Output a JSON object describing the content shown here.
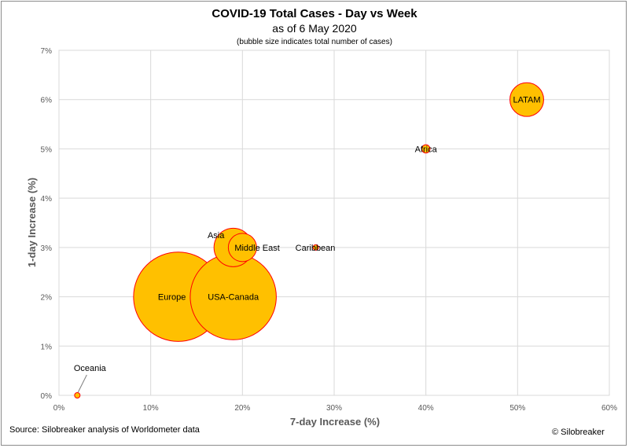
{
  "chart_data": {
    "type": "scatter",
    "title": "COVID-19 Total Cases - Day vs Week",
    "subtitle": "as of 6 May 2020",
    "note": "(bubble size indicates total number of cases)",
    "xlabel": "7-day Increase (%)",
    "ylabel": "1-day Increase (%)",
    "xlim": [
      0,
      60
    ],
    "ylim": [
      0,
      7
    ],
    "x_ticks": [
      "0%",
      "10%",
      "20%",
      "30%",
      "40%",
      "50%",
      "60%"
    ],
    "y_ticks": [
      "0%",
      "1%",
      "2%",
      "3%",
      "4%",
      "5%",
      "6%",
      "7%"
    ],
    "grid": true,
    "bubble_fill": "#ffc000",
    "bubble_stroke": "#ff0000",
    "points": [
      {
        "label": "Europe",
        "x": 13,
        "y": 2,
        "size": 1.4
      },
      {
        "label": "USA-Canada",
        "x": 19,
        "y": 2,
        "size": 1.3
      },
      {
        "label": "Asia",
        "x": 19,
        "y": 3,
        "size": 0.26
      },
      {
        "label": "Middle East",
        "x": 20,
        "y": 3,
        "size": 0.14
      },
      {
        "label": "Caribbean",
        "x": 28,
        "y": 3,
        "size": 0.002
      },
      {
        "label": "Africa",
        "x": 40,
        "y": 5,
        "size": 0.012
      },
      {
        "label": "LATAM",
        "x": 51,
        "y": 6,
        "size": 0.2
      },
      {
        "label": "Oceania",
        "x": 2,
        "y": 0,
        "size": 0.0009
      }
    ]
  },
  "footer": {
    "source": "Source: Silobreaker analysis of Worldometer data",
    "copyright": "© Silobreaker"
  }
}
